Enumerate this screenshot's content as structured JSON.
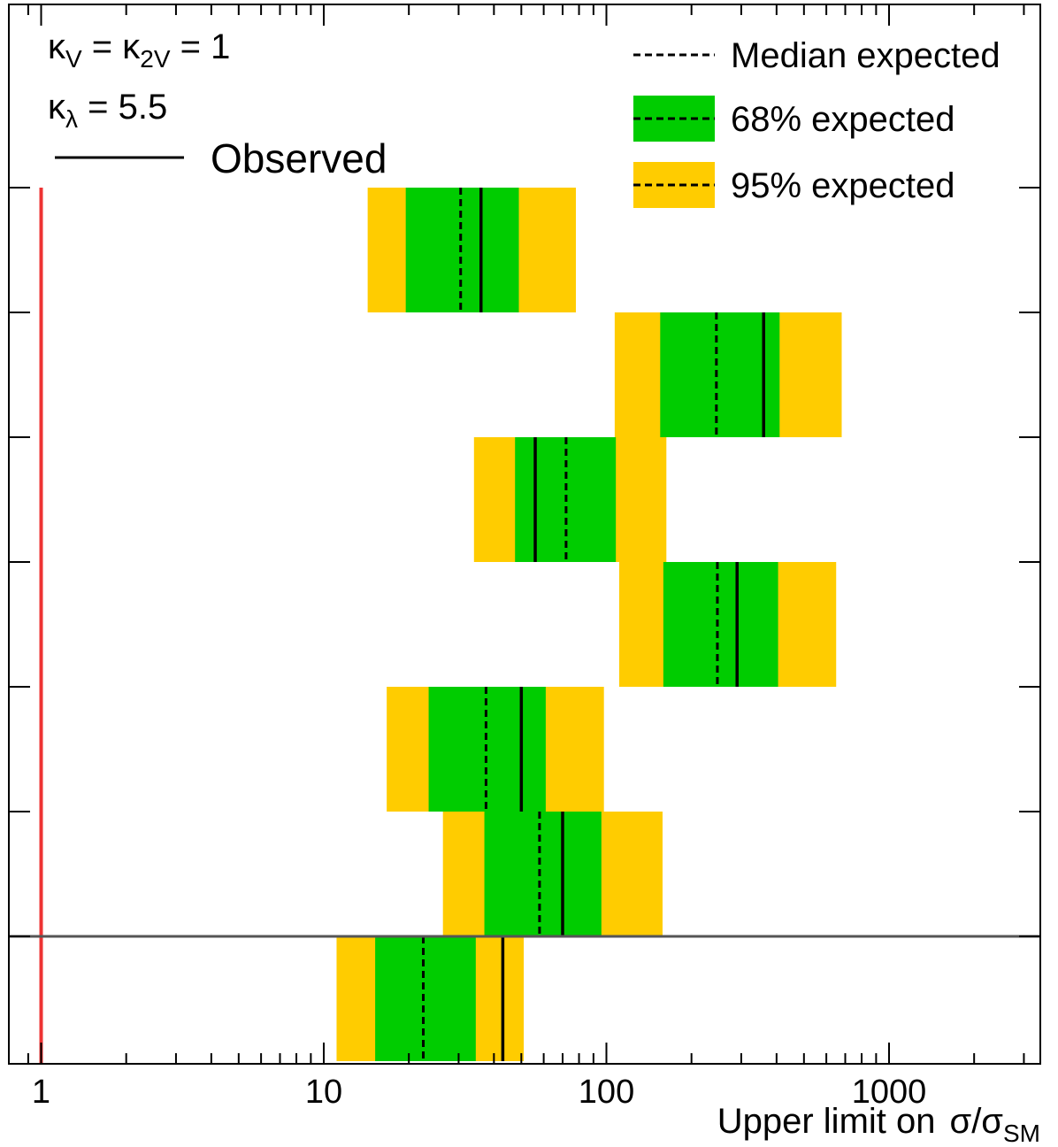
{
  "chart_data": {
    "type": "bar",
    "x_scale": "log",
    "xlim": [
      0.77,
      4100
    ],
    "xticks": [
      "1",
      "10",
      "100",
      "1000"
    ],
    "xlabel_main": "Upper limit on",
    "xlabel_symbol": "σ/σ",
    "xlabel_sub": "SM",
    "annotations": [
      {
        "base": "κ",
        "sub": "V",
        "mid": " = κ",
        "sub2": "2V",
        "tail": " = 1"
      },
      {
        "base": "κ",
        "sub": "λ",
        "mid": " = 5.5",
        "sub2": "",
        "tail": ""
      }
    ],
    "legend": {
      "observed": "Observed",
      "median": "Median expected",
      "band68": "68% expected",
      "band95": "95% expected"
    },
    "reference_line": 1,
    "rows": [
      {
        "observed": 36,
        "expected": 30.5,
        "band68": [
          19.5,
          49
        ],
        "band95": [
          14.3,
          78
        ]
      },
      {
        "observed": 360,
        "expected": 245,
        "band68": [
          155,
          410
        ],
        "band95": [
          107,
          680
        ]
      },
      {
        "observed": 56,
        "expected": 72,
        "band68": [
          47.5,
          108
        ],
        "band95": [
          34,
          163
        ]
      },
      {
        "observed": 290,
        "expected": 247,
        "band68": [
          159,
          405
        ],
        "band95": [
          111,
          650
        ]
      },
      {
        "observed": 50,
        "expected": 37.5,
        "band68": [
          23.5,
          61
        ],
        "band95": [
          16.7,
          98
        ]
      },
      {
        "observed": 70,
        "expected": 58,
        "band68": [
          37,
          96
        ],
        "band95": [
          26.4,
          158
        ]
      },
      {
        "observed": 43,
        "expected": 22.5,
        "band68": [
          15.2,
          34.5
        ],
        "band95": [
          11.1,
          51
        ]
      }
    ],
    "colors": {
      "band68": "#00cc00",
      "band95": "#ffcc00",
      "reference": "#ee3333",
      "separator": "#555555"
    }
  }
}
